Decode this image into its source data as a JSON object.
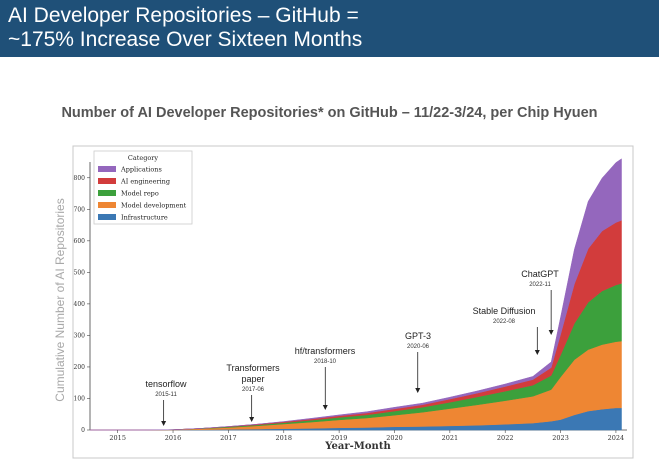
{
  "header": {
    "line1": "AI Developer Repositories – GitHub =",
    "line2": "~175% Increase Over Sixteen Months"
  },
  "subtitle": "Number of AI Developer Repositories* on GitHub – 11/22-3/24, per Chip Hyuen",
  "chart_data": {
    "type": "area",
    "stacked": true,
    "xlabel": "Year-Month",
    "ylabel": "Cumulative Number of AI Repositories",
    "xlim": [
      2014.5,
      2024.2
    ],
    "ylim": [
      0,
      850
    ],
    "x_ticks": [
      "2015",
      "2016",
      "2017",
      "2018",
      "2019",
      "2020",
      "2021",
      "2022",
      "2023",
      "2024"
    ],
    "y_ticks": [
      "0",
      "100",
      "200",
      "300",
      "400",
      "500",
      "600",
      "700",
      "800"
    ],
    "x": [
      2014.5,
      2015.0,
      2015.5,
      2016.0,
      2016.5,
      2017.0,
      2017.5,
      2018.0,
      2018.5,
      2019.0,
      2019.5,
      2020.0,
      2020.5,
      2021.0,
      2021.5,
      2022.0,
      2022.5,
      2022.83,
      2023.0,
      2023.25,
      2023.5,
      2023.75,
      2024.0,
      2024.1
    ],
    "legend": {
      "title": "Category",
      "position": "top-left"
    },
    "series": [
      {
        "name": "Infrastructure",
        "color": "#3b78b4",
        "values": [
          0,
          0,
          0,
          0,
          1,
          2,
          3,
          4,
          5,
          7,
          8,
          10,
          11,
          13,
          15,
          18,
          22,
          28,
          33,
          48,
          60,
          66,
          70,
          70
        ]
      },
      {
        "name": "Model development",
        "color": "#ee8633",
        "values": [
          0,
          0,
          0,
          1,
          3,
          6,
          10,
          15,
          20,
          25,
          30,
          37,
          45,
          55,
          65,
          75,
          85,
          100,
          135,
          175,
          195,
          205,
          210,
          212
        ]
      },
      {
        "name": "Model repo",
        "color": "#3ca03c",
        "values": [
          0,
          0,
          0,
          0,
          1,
          2,
          3,
          4,
          6,
          8,
          10,
          13,
          16,
          20,
          25,
          30,
          35,
          45,
          70,
          115,
          150,
          170,
          180,
          183
        ]
      },
      {
        "name": "AI engineering",
        "color": "#d23c3c",
        "values": [
          0,
          0,
          0,
          0,
          0,
          1,
          2,
          3,
          4,
          5,
          6,
          7,
          8,
          10,
          12,
          15,
          18,
          25,
          65,
          125,
          170,
          190,
          198,
          200
        ]
      },
      {
        "name": "Applications",
        "color": "#9467bd",
        "values": [
          0,
          0,
          0,
          0,
          0,
          0,
          0,
          1,
          2,
          3,
          4,
          5,
          5,
          6,
          7,
          8,
          10,
          18,
          55,
          110,
          150,
          168,
          190,
          195
        ]
      }
    ],
    "annotations": [
      {
        "label": "tensorflow",
        "date": "2015-11",
        "x": 2015.83
      },
      {
        "label": "Transformers paper",
        "label_lines": [
          "Transformers",
          "paper"
        ],
        "date": "2017-06",
        "x": 2017.42
      },
      {
        "label": "hf/transformers",
        "date": "2018-10",
        "x": 2018.75
      },
      {
        "label": "GPT-3",
        "date": "2020-06",
        "x": 2020.42
      },
      {
        "label": "Stable Diffusion",
        "date": "2022-08",
        "x": 2022.58
      },
      {
        "label": "ChatGPT",
        "date": "2022-11",
        "x": 2022.83
      }
    ]
  }
}
